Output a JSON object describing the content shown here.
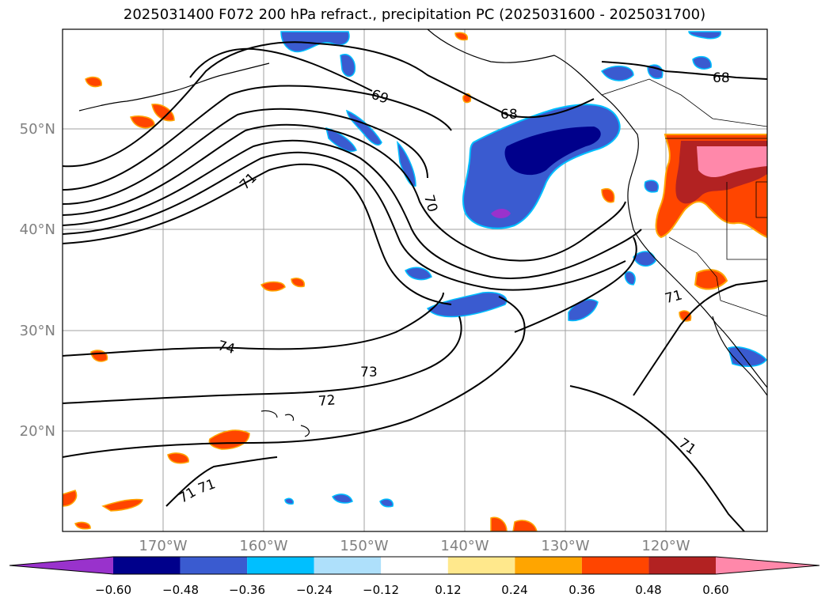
{
  "title": "2025031400 F072 200 hPa refract., precipitation PC (2025031600 - 2025031700)",
  "lat_labels": [
    "50°N",
    "40°N",
    "30°N",
    "20°N"
  ],
  "lon_labels": [
    "170°W",
    "160°W",
    "150°W",
    "140°W",
    "130°W",
    "120°W"
  ],
  "contour_labels": [
    "68",
    "69",
    "68",
    "71",
    "70",
    "74",
    "73",
    "72",
    "71",
    "71",
    "71",
    "71"
  ],
  "colorbar": {
    "ticks": [
      "−0.60",
      "−0.48",
      "−0.36",
      "−0.24",
      "−0.12",
      "0.12",
      "0.24",
      "0.36",
      "0.48",
      "0.60"
    ],
    "colors": [
      "#9932cc",
      "#00008b",
      "#3a5bd0",
      "#00bfff",
      "#aee0fb",
      "#ffffff",
      "#ffe88c",
      "#ffa500",
      "#ff4500",
      "#b22222",
      "#ff88aa"
    ]
  },
  "colors": {
    "grid": "#a0a0a0",
    "axis_label": "#808080",
    "contour": "#000000"
  }
}
